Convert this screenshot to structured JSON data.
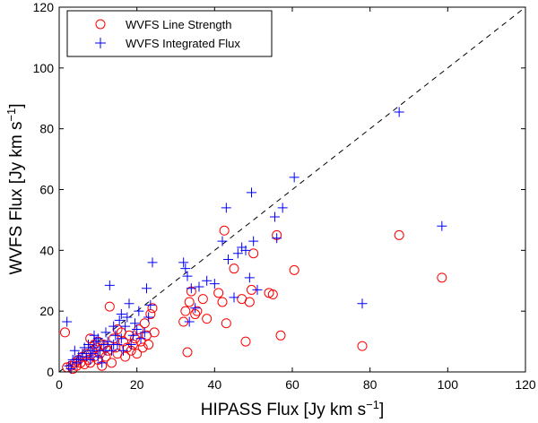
{
  "chart_data": {
    "type": "scatter",
    "title": "",
    "xlabel": "HIPASS Flux [Jy km s",
    "xlabel_sup": "−1",
    "xlabel_close": "]",
    "ylabel": "WVFS Flux [Jy km s",
    "ylabel_sup": "−1",
    "ylabel_close": "]",
    "xlim": [
      0,
      120
    ],
    "ylim": [
      0,
      120
    ],
    "xticks": [
      "0",
      "20",
      "40",
      "60",
      "80",
      "100",
      "120"
    ],
    "yticks": [
      "0",
      "20",
      "40",
      "60",
      "80",
      "100",
      "120"
    ],
    "legend_position": "top-left",
    "reference_line": {
      "style": "dashed",
      "x": [
        0,
        120
      ],
      "y": [
        0,
        120
      ],
      "color": "#000000"
    },
    "series": [
      {
        "name": "WVFS Line Strength",
        "marker": "circle",
        "color": "#ff0000",
        "points": [
          [
            1.5,
            13
          ],
          [
            2,
            1.5
          ],
          [
            3,
            2
          ],
          [
            3.5,
            1
          ],
          [
            4,
            3
          ],
          [
            4.5,
            2
          ],
          [
            5,
            4
          ],
          [
            5.5,
            3
          ],
          [
            6,
            5
          ],
          [
            6.5,
            2.5
          ],
          [
            7,
            6
          ],
          [
            7.5,
            4
          ],
          [
            8,
            3
          ],
          [
            8.5,
            7
          ],
          [
            9,
            5
          ],
          [
            9.5,
            8
          ],
          [
            10,
            4
          ],
          [
            10.5,
            6
          ],
          [
            11,
            2
          ],
          [
            11.5,
            9
          ],
          [
            12,
            5
          ],
          [
            12.5,
            7
          ],
          [
            13,
            21.5
          ],
          [
            13.5,
            3
          ],
          [
            14,
            11
          ],
          [
            14.5,
            8
          ],
          [
            15,
            6
          ],
          [
            16,
            13
          ],
          [
            16.5,
            10
          ],
          [
            17,
            5
          ],
          [
            17.5,
            8
          ],
          [
            18,
            12
          ],
          [
            18.5,
            7
          ],
          [
            19,
            9
          ],
          [
            19.5,
            11
          ],
          [
            20,
            6
          ],
          [
            20.5,
            14
          ],
          [
            21,
            10
          ],
          [
            21.5,
            8
          ],
          [
            22,
            16
          ],
          [
            22.5,
            12
          ],
          [
            23,
            9
          ],
          [
            23.5,
            19
          ],
          [
            24,
            21
          ],
          [
            24.5,
            13
          ],
          [
            8,
            11
          ],
          [
            9,
            9
          ],
          [
            10,
            10
          ],
          [
            12,
            8
          ],
          [
            15,
            14
          ],
          [
            32,
            16.5
          ],
          [
            32.5,
            20
          ],
          [
            33,
            6.5
          ],
          [
            33.5,
            23
          ],
          [
            34,
            26.5
          ],
          [
            35,
            19
          ],
          [
            35.5,
            20
          ],
          [
            37,
            24
          ],
          [
            38,
            17.5
          ],
          [
            41,
            26
          ],
          [
            42,
            23
          ],
          [
            42.5,
            46.5
          ],
          [
            43,
            16
          ],
          [
            45,
            34
          ],
          [
            47,
            24
          ],
          [
            48,
            10
          ],
          [
            49,
            23
          ],
          [
            49.5,
            27
          ],
          [
            50,
            39
          ],
          [
            54,
            26
          ],
          [
            55,
            25.5
          ],
          [
            56,
            45
          ],
          [
            57,
            12
          ],
          [
            60.5,
            33.5
          ],
          [
            78,
            8.5
          ],
          [
            87.5,
            45
          ],
          [
            98.5,
            31
          ]
        ]
      },
      {
        "name": "WVFS Integrated Flux",
        "marker": "plus",
        "color": "#0000ff",
        "points": [
          [
            2,
            16.5
          ],
          [
            2.5,
            2
          ],
          [
            3,
            1
          ],
          [
            3.5,
            4
          ],
          [
            4,
            7
          ],
          [
            4.5,
            3
          ],
          [
            5,
            5
          ],
          [
            5.5,
            4
          ],
          [
            6,
            6
          ],
          [
            6.5,
            8
          ],
          [
            7,
            5
          ],
          [
            7.5,
            9
          ],
          [
            8,
            4
          ],
          [
            8.5,
            6
          ],
          [
            9,
            8
          ],
          [
            9.5,
            10
          ],
          [
            10,
            5
          ],
          [
            10.5,
            7
          ],
          [
            11,
            3
          ],
          [
            11.5,
            9
          ],
          [
            12,
            13
          ],
          [
            12.5,
            10
          ],
          [
            13,
            28.5
          ],
          [
            13.5,
            7
          ],
          [
            14,
            15
          ],
          [
            14.5,
            12
          ],
          [
            15,
            9
          ],
          [
            15.5,
            17
          ],
          [
            16,
            11
          ],
          [
            16.5,
            7
          ],
          [
            17,
            15
          ],
          [
            17.5,
            18
          ],
          [
            18,
            22.5
          ],
          [
            18.5,
            9
          ],
          [
            19,
            12
          ],
          [
            19.5,
            16
          ],
          [
            20,
            14
          ],
          [
            20.5,
            20
          ],
          [
            21,
            11
          ],
          [
            22,
            13
          ],
          [
            22.5,
            27.5
          ],
          [
            23,
            18
          ],
          [
            23.5,
            22
          ],
          [
            24,
            36
          ],
          [
            8,
            7
          ],
          [
            9,
            12
          ],
          [
            10,
            11
          ],
          [
            12,
            7
          ],
          [
            14,
            9
          ],
          [
            16,
            19
          ],
          [
            32,
            36
          ],
          [
            32.5,
            34
          ],
          [
            33,
            31.5
          ],
          [
            33.5,
            16.5
          ],
          [
            34,
            27.5
          ],
          [
            35,
            21
          ],
          [
            36,
            28
          ],
          [
            38,
            30
          ],
          [
            40,
            29
          ],
          [
            42,
            43
          ],
          [
            43,
            54
          ],
          [
            43.5,
            37
          ],
          [
            45,
            24.5
          ],
          [
            46,
            39
          ],
          [
            47,
            41
          ],
          [
            48,
            40
          ],
          [
            49,
            31
          ],
          [
            49.5,
            59
          ],
          [
            50,
            43
          ],
          [
            51,
            27
          ],
          [
            55.5,
            51
          ],
          [
            56,
            44
          ],
          [
            57.5,
            54
          ],
          [
            60.5,
            64
          ],
          [
            78,
            22.5
          ],
          [
            87.5,
            85.5
          ],
          [
            98.5,
            48
          ]
        ]
      }
    ]
  }
}
